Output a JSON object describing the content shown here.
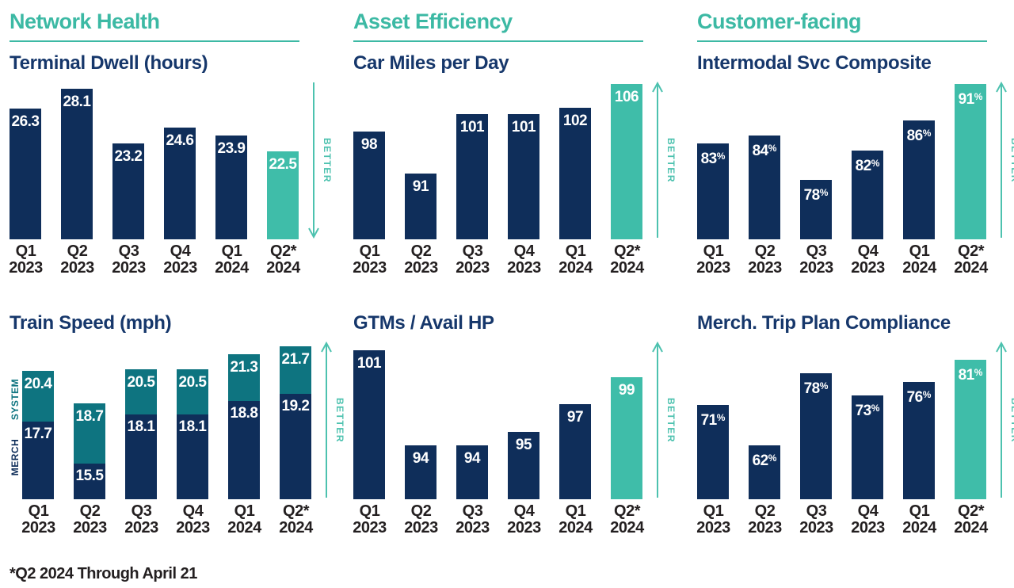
{
  "sections": [
    {
      "title": "Network Health"
    },
    {
      "title": "Asset Efficiency"
    },
    {
      "title": "Customer-facing"
    }
  ],
  "labels": {
    "better": "BETTER"
  },
  "footnote": "*Q2 2024 Through April 21",
  "colors": {
    "navy": "#0F2E5A",
    "highlight_teal": "#3FBDA9",
    "system_teal": "#0E7480",
    "section_teal": "#3CB9A4",
    "arrow_teal": "#4DC2AF",
    "title_navy": "#16376B",
    "text_dark": "#231F20"
  },
  "chart_data": [
    {
      "id": "terminal-dwell",
      "section": "Network Health",
      "type": "bar",
      "title": "Terminal Dwell (hours)",
      "unit": "",
      "categories": [
        "Q1 2023",
        "Q2 2023",
        "Q3 2023",
        "Q4 2023",
        "Q1 2024",
        "Q2* 2024"
      ],
      "values": [
        26.3,
        28.1,
        23.2,
        24.6,
        23.9,
        22.5
      ],
      "ylim": [
        14.6,
        28.8
      ],
      "better_direction": "down",
      "highlight_last": true,
      "grid": false,
      "value_labels": "inside-top"
    },
    {
      "id": "car-miles-per-day",
      "section": "Asset Efficiency",
      "type": "bar",
      "title": "Car Miles per Day",
      "unit": "",
      "categories": [
        "Q1 2023",
        "Q2 2023",
        "Q3 2023",
        "Q4 2023",
        "Q1 2024",
        "Q2* 2024"
      ],
      "values": [
        98,
        91,
        101,
        101,
        102,
        106
      ],
      "ylim": [
        80,
        106.5
      ],
      "better_direction": "up",
      "highlight_last": true,
      "grid": false,
      "value_labels": "inside-top"
    },
    {
      "id": "intermodal-svc-composite",
      "section": "Customer-facing",
      "type": "bar",
      "title": "Intermodal Svc Composite",
      "unit": "%",
      "categories": [
        "Q1 2023",
        "Q2 2023",
        "Q3 2023",
        "Q4 2023",
        "Q1 2024",
        "Q2* 2024"
      ],
      "values": [
        83,
        84,
        78,
        82,
        86,
        91
      ],
      "ylim": [
        70,
        91.4
      ],
      "better_direction": "up",
      "highlight_last": true,
      "grid": false,
      "value_labels": "inside-top"
    },
    {
      "id": "train-speed",
      "section": "Network Health",
      "type": "stacked-overlay",
      "title": "Train Speed (mph)",
      "unit": "",
      "categories": [
        "Q1 2023",
        "Q2 2023",
        "Q3 2023",
        "Q4 2023",
        "Q1 2024",
        "Q2* 2024"
      ],
      "series": [
        {
          "name": "SYSTEM",
          "values": [
            20.4,
            18.7,
            20.5,
            20.5,
            21.3,
            21.7
          ]
        },
        {
          "name": "MERCH",
          "values": [
            17.7,
            15.5,
            18.1,
            18.1,
            18.8,
            19.2
          ]
        }
      ],
      "ylim": [
        13.6,
        22.0
      ],
      "better_direction": "up",
      "highlight_last": false,
      "grid": false,
      "value_labels": "inside-top",
      "legend_position": "rotated-left-axis"
    },
    {
      "id": "gtms-avail-hp",
      "section": "Asset Efficiency",
      "type": "bar",
      "title": "GTMs / Avail HP",
      "unit": "",
      "categories": [
        "Q1 2023",
        "Q2 2023",
        "Q3 2023",
        "Q4 2023",
        "Q1 2024",
        "Q2* 2024"
      ],
      "values": [
        101,
        94,
        94,
        95,
        97,
        99
      ],
      "ylim": [
        90,
        101.7
      ],
      "better_direction": "up",
      "highlight_last": true,
      "grid": false,
      "value_labels": "inside-top"
    },
    {
      "id": "merch-trip-plan-compliance",
      "section": "Customer-facing",
      "type": "bar",
      "title": "Merch. Trip Plan Compliance",
      "unit": "%",
      "categories": [
        "Q1 2023",
        "Q2 2023",
        "Q3 2023",
        "Q4 2023",
        "Q1 2024",
        "Q2* 2024"
      ],
      "values": [
        71,
        62,
        78,
        73,
        76,
        81
      ],
      "ylim": [
        50,
        85.2
      ],
      "better_direction": "up",
      "highlight_last": true,
      "grid": false,
      "value_labels": "inside-top"
    }
  ]
}
